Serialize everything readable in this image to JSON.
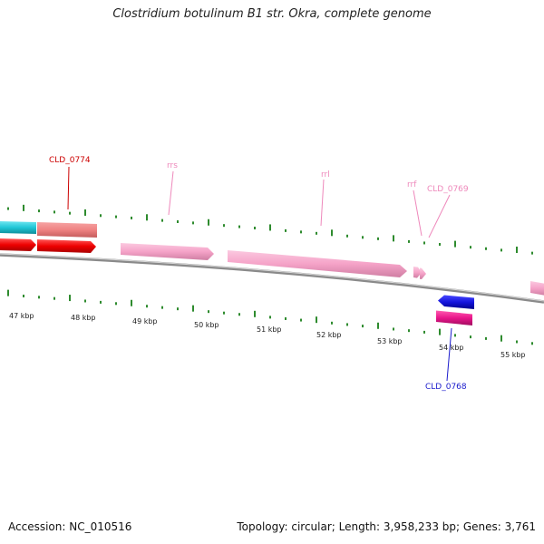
{
  "header": {
    "title": "Clostridium botulinum B1 str. Okra, complete genome"
  },
  "footer": {
    "accession": "Accession: NC_010516",
    "stats": "Topology: circular; Length: 3,958,233 bp; Genes: 3,761"
  },
  "map": {
    "kbp_labels": [
      "47 kbp",
      "48 kbp",
      "49 kbp",
      "50 kbp",
      "51 kbp",
      "52 kbp",
      "53 kbp",
      "54 kbp",
      "55 kbp"
    ],
    "gene_labels": {
      "cld_0774": "CLD_0774",
      "rrs": "rrs",
      "rrl": "rrl",
      "rrf": "rrf",
      "cld_0769": "CLD_0769",
      "cld_0768": "CLD_0768"
    },
    "colors": {
      "backbone": "#8a8a8a",
      "tick": "#2e8b2e",
      "cds": "#ee0000",
      "cds_category": "#f08080",
      "rrna": "#f5a3c8",
      "cyan_category": "#22c8d8",
      "cds_reverse": "#1a1acc",
      "magenta_category": "#e8168a",
      "label_red": "#cc0000",
      "label_pink": "#ee88bb",
      "label_blue": "#1a1acc"
    }
  }
}
